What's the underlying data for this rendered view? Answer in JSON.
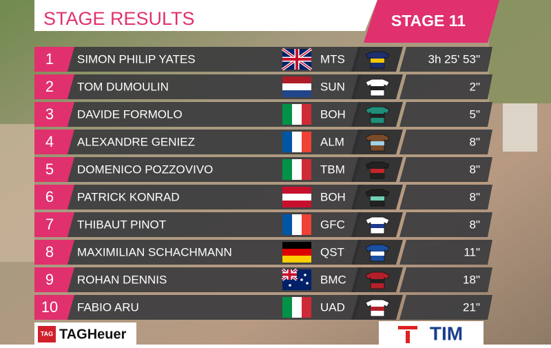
{
  "header": {
    "title": "STAGE RESULTS",
    "stage": "STAGE 11"
  },
  "results": [
    {
      "rank": 1,
      "rider": "SIMON PHILIP YATES",
      "team": "MTS",
      "time": "3h 25' 53\""
    },
    {
      "rank": 2,
      "rider": "TOM DUMOULIN",
      "team": "SUN",
      "time": "2\""
    },
    {
      "rank": 3,
      "rider": "DAVIDE FORMOLO",
      "team": "BOH",
      "time": "5\""
    },
    {
      "rank": 4,
      "rider": "ALEXANDRE GENIEZ",
      "team": "ALM",
      "time": "8\""
    },
    {
      "rank": 5,
      "rider": "DOMENICO POZZOVIVO",
      "team": "TBM",
      "time": "8\""
    },
    {
      "rank": 6,
      "rider": "PATRICK KONRAD",
      "team": "BOH",
      "time": "8\""
    },
    {
      "rank": 7,
      "rider": "THIBAUT PINOT",
      "team": "GFC",
      "time": "8\""
    },
    {
      "rank": 8,
      "rider": "MAXIMILIAN SCHACHMANN",
      "team": "QST",
      "time": "11\""
    },
    {
      "rank": 9,
      "rider": "ROHAN DENNIS",
      "team": "BMC",
      "time": "18\""
    },
    {
      "rank": 10,
      "rider": "FABIO ARU",
      "team": "UAD",
      "time": "21\""
    }
  ],
  "sponsors": {
    "left": "TAGHeuer",
    "left_badge": "TAG",
    "right": "TIM"
  }
}
